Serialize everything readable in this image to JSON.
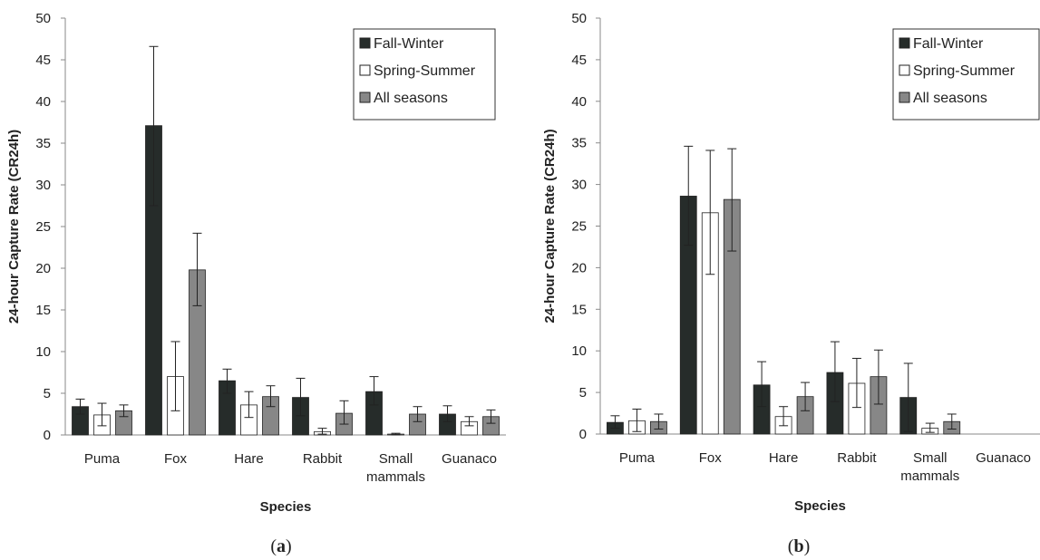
{
  "colors": {
    "fall_winter": "#262c2a",
    "spring_summer": "#ffffff",
    "all_seasons": "#878787",
    "axis": "#8a8a8a",
    "bar_stroke": "#222222"
  },
  "chart_data": [
    {
      "type": "bar",
      "panel_label_prefix": "(",
      "panel_label_letter": "a",
      "panel_label_suffix": ")",
      "xlabel": "Species",
      "ylabel": "24-hour Capture Rate (CR24h)",
      "ylim": [
        0,
        50
      ],
      "yticks": [
        0,
        5,
        10,
        15,
        20,
        25,
        30,
        35,
        40,
        45,
        50
      ],
      "grid": false,
      "legend_position": "top-right",
      "categories": [
        [
          "Puma"
        ],
        [
          "Fox"
        ],
        [
          "Hare"
        ],
        [
          "Rabbit"
        ],
        [
          "Small",
          "mammals"
        ],
        [
          "Guanaco"
        ]
      ],
      "series": [
        {
          "name": "Fall-Winter",
          "values": [
            3.4,
            37.1,
            6.5,
            4.5,
            5.2,
            2.5
          ],
          "err_low": [
            2.5,
            27.5,
            5.0,
            2.3,
            3.6,
            1.6
          ],
          "err_high": [
            4.3,
            46.6,
            7.9,
            6.8,
            7.0,
            3.5
          ]
        },
        {
          "name": "Spring-Summer",
          "values": [
            2.4,
            7.0,
            3.6,
            0.4,
            0.1,
            1.6
          ],
          "err_low": [
            1.1,
            2.9,
            2.1,
            0.1,
            0.0,
            1.1
          ],
          "err_high": [
            3.8,
            11.2,
            5.2,
            0.8,
            0.2,
            2.2
          ]
        },
        {
          "name": "All seasons",
          "values": [
            2.9,
            19.8,
            4.6,
            2.6,
            2.5,
            2.2
          ],
          "err_low": [
            2.2,
            15.5,
            3.4,
            1.3,
            1.6,
            1.4
          ],
          "err_high": [
            3.6,
            24.2,
            5.9,
            4.1,
            3.4,
            3.0
          ]
        }
      ]
    },
    {
      "type": "bar",
      "panel_label_prefix": "(",
      "panel_label_letter": "b",
      "panel_label_suffix": ")",
      "xlabel": "Species",
      "ylabel": "24-hour Capture Rate (CR24h)",
      "ylim": [
        0,
        50
      ],
      "yticks": [
        0,
        5,
        10,
        15,
        20,
        25,
        30,
        35,
        40,
        45,
        50
      ],
      "grid": false,
      "legend_position": "top-right",
      "categories": [
        [
          "Puma"
        ],
        [
          "Fox"
        ],
        [
          "Hare"
        ],
        [
          "Rabbit"
        ],
        [
          "Small",
          "mammals"
        ],
        [
          "Guanaco"
        ]
      ],
      "series": [
        {
          "name": "Fall-Winter",
          "values": [
            1.4,
            28.6,
            5.9,
            7.4,
            4.4,
            0
          ],
          "err_low": [
            0.7,
            22.7,
            3.3,
            3.9,
            0.3,
            0
          ],
          "err_high": [
            2.2,
            34.6,
            8.7,
            11.1,
            8.5,
            0
          ]
        },
        {
          "name": "Spring-Summer",
          "values": [
            1.6,
            26.6,
            2.1,
            6.1,
            0.7,
            0
          ],
          "err_low": [
            0.3,
            19.2,
            1.0,
            3.2,
            0.2,
            0
          ],
          "err_high": [
            3.0,
            34.1,
            3.3,
            9.1,
            1.3,
            0
          ]
        },
        {
          "name": "All seasons",
          "values": [
            1.5,
            28.2,
            4.5,
            6.9,
            1.5,
            0
          ],
          "err_low": [
            0.6,
            22.0,
            2.8,
            3.6,
            0.6,
            0
          ],
          "err_high": [
            2.4,
            34.3,
            6.2,
            10.1,
            2.4,
            0
          ]
        }
      ]
    }
  ]
}
